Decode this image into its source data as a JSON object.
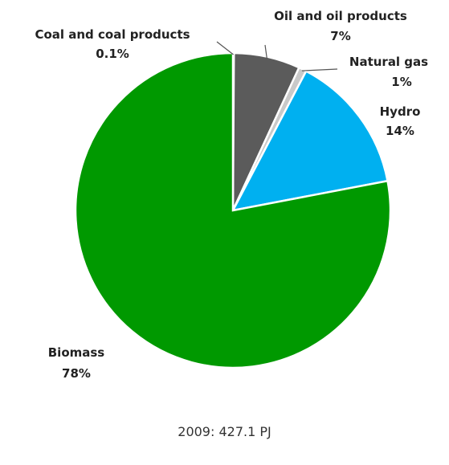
{
  "chart_data": {
    "type": "pie",
    "title": "",
    "footnote": "2009: 427.1 PJ",
    "slices": [
      {
        "name": "Coal and coal products",
        "label": "0.1%",
        "value": 0.1,
        "color": "#7a7a7a"
      },
      {
        "name": "Oil and oil products",
        "label": "7%",
        "value": 6.8,
        "color": "#5b5b5b"
      },
      {
        "name": "Natural gas",
        "label": "1%",
        "value": 0.8,
        "color": "#c9c9c9"
      },
      {
        "name": "Hydro",
        "label": "14%",
        "value": 14.3,
        "color": "#00b0f0"
      },
      {
        "name": "Biomass",
        "label": "78%",
        "value": 78.0,
        "color": "#009900"
      }
    ]
  }
}
